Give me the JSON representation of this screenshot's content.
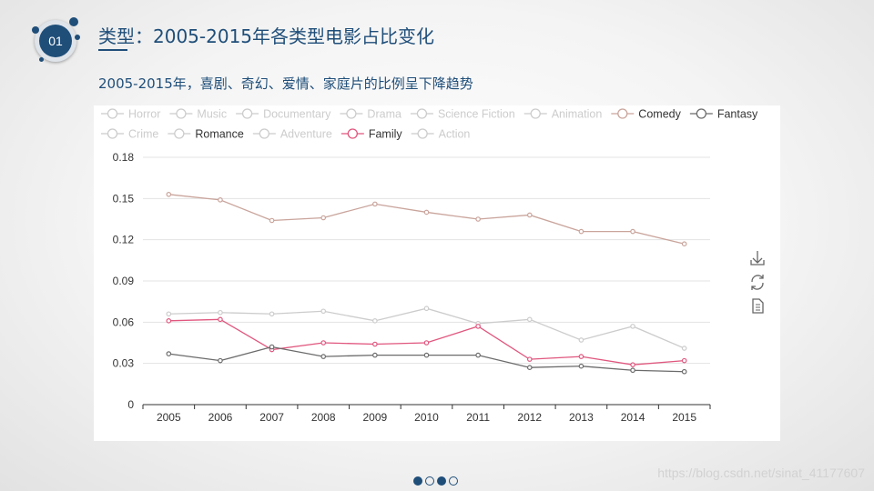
{
  "section": {
    "number": "01"
  },
  "header": {
    "title": "类型：2005-2015年各类型电影占比变化"
  },
  "subtitle": "2005-2015年，喜剧、奇幻、爱情、家庭片的比例呈下降趋势",
  "watermark": "https://blog.csdn.net/sinat_41177607",
  "toolbar": {
    "icons": [
      "download-icon",
      "refresh-icon",
      "data-view-icon"
    ]
  },
  "pager": {
    "pages": 4,
    "active": [
      0,
      2
    ]
  },
  "colors": {
    "accent": "#1f4e79",
    "comedy": "#c9a49b",
    "fantasy": "#6b6b6b",
    "family": "#e0567e",
    "faded": "#cccccc"
  },
  "chart_data": {
    "type": "line",
    "title": "",
    "xlabel": "",
    "ylabel": "",
    "x": [
      "2005",
      "2006",
      "2007",
      "2008",
      "2009",
      "2010",
      "2011",
      "2012",
      "2013",
      "2014",
      "2015"
    ],
    "ylim": [
      0,
      0.18
    ],
    "yticks": [
      0,
      0.03,
      0.06,
      0.09,
      0.12,
      0.15,
      0.18
    ],
    "ytick_labels": [
      "0",
      "0.03",
      "0.06",
      "0.09",
      "0.12",
      "0.15",
      "0.18"
    ],
    "grid": true,
    "legend": [
      {
        "name": "Horror",
        "selected": false
      },
      {
        "name": "Music",
        "selected": false
      },
      {
        "name": "Documentary",
        "selected": false
      },
      {
        "name": "Drama",
        "selected": false
      },
      {
        "name": "Science Fiction",
        "selected": false
      },
      {
        "name": "Animation",
        "selected": false
      },
      {
        "name": "Comedy",
        "selected": true
      },
      {
        "name": "Fantasy",
        "selected": true
      },
      {
        "name": "Crime",
        "selected": false
      },
      {
        "name": "Romance",
        "selected": true
      },
      {
        "name": "Adventure",
        "selected": false
      },
      {
        "name": "Family",
        "selected": true
      },
      {
        "name": "Action",
        "selected": false
      }
    ],
    "series": [
      {
        "name": "Comedy",
        "color": "#c9a49b",
        "values": [
          0.153,
          0.149,
          0.134,
          0.136,
          0.146,
          0.14,
          0.135,
          0.138,
          0.126,
          0.126,
          0.117
        ]
      },
      {
        "name": "Romance",
        "color": "#cccccc",
        "values": [
          0.066,
          0.067,
          0.066,
          0.068,
          0.061,
          0.07,
          0.059,
          0.062,
          0.047,
          0.057,
          0.041
        ]
      },
      {
        "name": "Family",
        "color": "#e0567e",
        "values": [
          0.061,
          0.062,
          0.04,
          0.045,
          0.044,
          0.045,
          0.057,
          0.033,
          0.035,
          0.029,
          0.032
        ]
      },
      {
        "name": "Fantasy",
        "color": "#6b6b6b",
        "values": [
          0.037,
          0.032,
          0.042,
          0.035,
          0.036,
          0.036,
          0.036,
          0.027,
          0.028,
          0.025,
          0.024
        ]
      }
    ]
  }
}
